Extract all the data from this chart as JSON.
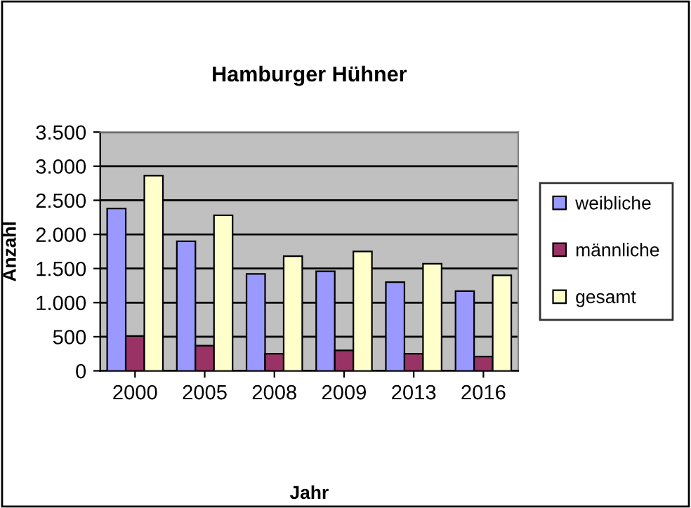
{
  "chart_data": {
    "type": "bar",
    "title": "Hamburger Hühner",
    "xlabel": "Jahr",
    "ylabel": "Anzahl",
    "categories": [
      "2000",
      "2005",
      "2008",
      "2009",
      "2013",
      "2016"
    ],
    "series": [
      {
        "name": "weibliche",
        "color": "#9999ff",
        "values": [
          2380,
          1900,
          1420,
          1460,
          1300,
          1170
        ]
      },
      {
        "name": "männliche",
        "color": "#993366",
        "values": [
          510,
          370,
          250,
          300,
          250,
          210
        ]
      },
      {
        "name": "gesamt",
        "color": "#ffffcc",
        "values": [
          2860,
          2280,
          1680,
          1750,
          1570,
          1400
        ]
      }
    ],
    "ylim": [
      0,
      3500
    ],
    "yticks": [
      0,
      500,
      {
        "value": 1000,
        "label": "1.000"
      },
      {
        "value": 1500,
        "label": "1.500"
      },
      {
        "value": 2000,
        "label": "2.000"
      },
      {
        "value": 2500,
        "label": "2.500"
      },
      {
        "value": 3000,
        "label": "3.000"
      },
      {
        "value": 3500,
        "label": "3.500"
      }
    ],
    "grid": "y",
    "legend": "right"
  }
}
